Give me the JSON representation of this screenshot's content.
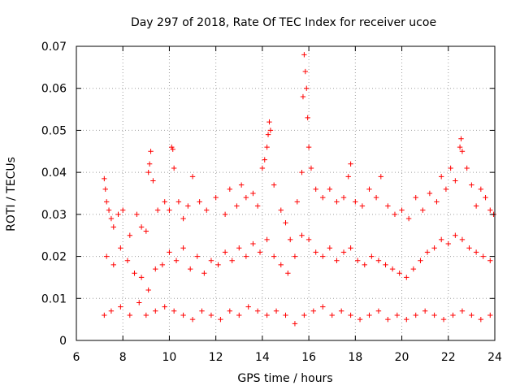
{
  "chart_data": {
    "type": "scatter",
    "title": "Day 297 of 2018, Rate Of TEC Index for receiver ucoe",
    "xlabel": "GPS time / hours",
    "ylabel": "ROTI / TECUs",
    "xlim": [
      6,
      24
    ],
    "ylim": [
      0,
      0.07
    ],
    "xticks": [
      6,
      8,
      10,
      12,
      14,
      16,
      18,
      20,
      22,
      24
    ],
    "yticks": [
      0,
      0.01,
      0.02,
      0.03,
      0.04,
      0.05,
      0.06,
      0.07
    ],
    "ytick_labels": [
      "0",
      "0.01",
      "0.02",
      "0.03",
      "0.04",
      "0.05",
      "0.06",
      "0.07"
    ],
    "grid": true,
    "marker": "+",
    "series": [
      {
        "name": "ROTI",
        "color": "#ff0000",
        "points": [
          [
            7.2,
            0.0385
          ],
          [
            7.25,
            0.036
          ],
          [
            7.3,
            0.033
          ],
          [
            7.4,
            0.031
          ],
          [
            7.5,
            0.029
          ],
          [
            7.6,
            0.027
          ],
          [
            7.8,
            0.03
          ],
          [
            8.0,
            0.031
          ],
          [
            8.3,
            0.025
          ],
          [
            8.6,
            0.03
          ],
          [
            8.8,
            0.027
          ],
          [
            9.0,
            0.026
          ],
          [
            9.1,
            0.04
          ],
          [
            9.15,
            0.042
          ],
          [
            9.2,
            0.045
          ],
          [
            9.3,
            0.038
          ],
          [
            9.5,
            0.031
          ],
          [
            9.8,
            0.033
          ],
          [
            10.0,
            0.031
          ],
          [
            10.1,
            0.046
          ],
          [
            10.15,
            0.0455
          ],
          [
            10.2,
            0.041
          ],
          [
            10.4,
            0.033
          ],
          [
            10.6,
            0.029
          ],
          [
            10.8,
            0.032
          ],
          [
            11.0,
            0.039
          ],
          [
            11.3,
            0.033
          ],
          [
            11.6,
            0.031
          ],
          [
            12.0,
            0.034
          ],
          [
            12.4,
            0.03
          ],
          [
            12.6,
            0.036
          ],
          [
            12.9,
            0.032
          ],
          [
            13.1,
            0.037
          ],
          [
            13.3,
            0.034
          ],
          [
            13.6,
            0.035
          ],
          [
            13.8,
            0.032
          ],
          [
            14.0,
            0.041
          ],
          [
            14.1,
            0.043
          ],
          [
            14.2,
            0.046
          ],
          [
            14.25,
            0.049
          ],
          [
            14.3,
            0.052
          ],
          [
            14.35,
            0.05
          ],
          [
            14.5,
            0.037
          ],
          [
            14.8,
            0.031
          ],
          [
            15.0,
            0.028
          ],
          [
            15.2,
            0.024
          ],
          [
            15.5,
            0.033
          ],
          [
            15.7,
            0.04
          ],
          [
            15.75,
            0.058
          ],
          [
            15.8,
            0.068
          ],
          [
            15.85,
            0.064
          ],
          [
            15.9,
            0.06
          ],
          [
            15.95,
            0.053
          ],
          [
            16.0,
            0.046
          ],
          [
            16.1,
            0.041
          ],
          [
            16.3,
            0.036
          ],
          [
            16.6,
            0.034
          ],
          [
            16.9,
            0.036
          ],
          [
            17.2,
            0.033
          ],
          [
            17.5,
            0.034
          ],
          [
            17.7,
            0.039
          ],
          [
            17.8,
            0.042
          ],
          [
            18.0,
            0.033
          ],
          [
            18.3,
            0.032
          ],
          [
            18.6,
            0.036
          ],
          [
            18.9,
            0.034
          ],
          [
            19.1,
            0.039
          ],
          [
            19.4,
            0.032
          ],
          [
            19.7,
            0.03
          ],
          [
            20.0,
            0.031
          ],
          [
            20.3,
            0.029
          ],
          [
            20.6,
            0.034
          ],
          [
            20.9,
            0.031
          ],
          [
            21.2,
            0.035
          ],
          [
            21.5,
            0.033
          ],
          [
            21.7,
            0.039
          ],
          [
            21.9,
            0.036
          ],
          [
            22.1,
            0.041
          ],
          [
            22.3,
            0.038
          ],
          [
            22.5,
            0.046
          ],
          [
            22.55,
            0.048
          ],
          [
            22.6,
            0.045
          ],
          [
            22.8,
            0.041
          ],
          [
            23.0,
            0.037
          ],
          [
            23.2,
            0.032
          ],
          [
            23.4,
            0.036
          ],
          [
            23.6,
            0.034
          ],
          [
            23.8,
            0.031
          ],
          [
            23.95,
            0.03
          ],
          [
            7.3,
            0.02
          ],
          [
            7.6,
            0.018
          ],
          [
            7.9,
            0.022
          ],
          [
            8.2,
            0.019
          ],
          [
            8.5,
            0.016
          ],
          [
            8.8,
            0.015
          ],
          [
            9.1,
            0.012
          ],
          [
            9.4,
            0.017
          ],
          [
            9.7,
            0.018
          ],
          [
            10.0,
            0.021
          ],
          [
            10.3,
            0.019
          ],
          [
            10.6,
            0.022
          ],
          [
            10.9,
            0.017
          ],
          [
            11.2,
            0.02
          ],
          [
            11.5,
            0.016
          ],
          [
            11.8,
            0.019
          ],
          [
            12.1,
            0.018
          ],
          [
            12.4,
            0.021
          ],
          [
            12.7,
            0.019
          ],
          [
            13.0,
            0.022
          ],
          [
            13.3,
            0.02
          ],
          [
            13.6,
            0.023
          ],
          [
            13.9,
            0.021
          ],
          [
            14.2,
            0.024
          ],
          [
            14.5,
            0.02
          ],
          [
            14.8,
            0.018
          ],
          [
            15.1,
            0.016
          ],
          [
            15.4,
            0.02
          ],
          [
            15.7,
            0.025
          ],
          [
            16.0,
            0.024
          ],
          [
            16.3,
            0.021
          ],
          [
            16.6,
            0.02
          ],
          [
            16.9,
            0.022
          ],
          [
            17.2,
            0.019
          ],
          [
            17.5,
            0.021
          ],
          [
            17.8,
            0.022
          ],
          [
            18.1,
            0.019
          ],
          [
            18.4,
            0.018
          ],
          [
            18.7,
            0.02
          ],
          [
            19.0,
            0.019
          ],
          [
            19.3,
            0.018
          ],
          [
            19.6,
            0.017
          ],
          [
            19.9,
            0.016
          ],
          [
            20.2,
            0.015
          ],
          [
            20.5,
            0.017
          ],
          [
            20.8,
            0.019
          ],
          [
            21.1,
            0.021
          ],
          [
            21.4,
            0.022
          ],
          [
            21.7,
            0.024
          ],
          [
            22.0,
            0.023
          ],
          [
            22.3,
            0.025
          ],
          [
            22.6,
            0.024
          ],
          [
            22.9,
            0.022
          ],
          [
            23.2,
            0.021
          ],
          [
            23.5,
            0.02
          ],
          [
            23.8,
            0.019
          ],
          [
            7.2,
            0.006
          ],
          [
            7.5,
            0.007
          ],
          [
            7.9,
            0.008
          ],
          [
            8.3,
            0.006
          ],
          [
            8.7,
            0.009
          ],
          [
            9.0,
            0.006
          ],
          [
            9.4,
            0.007
          ],
          [
            9.8,
            0.008
          ],
          [
            10.2,
            0.007
          ],
          [
            10.6,
            0.006
          ],
          [
            11.0,
            0.005
          ],
          [
            11.4,
            0.007
          ],
          [
            11.8,
            0.006
          ],
          [
            12.2,
            0.005
          ],
          [
            12.6,
            0.007
          ],
          [
            13.0,
            0.006
          ],
          [
            13.4,
            0.008
          ],
          [
            13.8,
            0.007
          ],
          [
            14.2,
            0.006
          ],
          [
            14.6,
            0.007
          ],
          [
            15.0,
            0.006
          ],
          [
            15.4,
            0.004
          ],
          [
            15.8,
            0.006
          ],
          [
            16.2,
            0.007
          ],
          [
            16.6,
            0.008
          ],
          [
            17.0,
            0.006
          ],
          [
            17.4,
            0.007
          ],
          [
            17.8,
            0.006
          ],
          [
            18.2,
            0.005
          ],
          [
            18.6,
            0.006
          ],
          [
            19.0,
            0.007
          ],
          [
            19.4,
            0.005
          ],
          [
            19.8,
            0.006
          ],
          [
            20.2,
            0.005
          ],
          [
            20.6,
            0.006
          ],
          [
            21.0,
            0.007
          ],
          [
            21.4,
            0.006
          ],
          [
            21.8,
            0.005
          ],
          [
            22.2,
            0.006
          ],
          [
            22.6,
            0.007
          ],
          [
            23.0,
            0.006
          ],
          [
            23.4,
            0.005
          ],
          [
            23.8,
            0.006
          ]
        ]
      }
    ]
  }
}
